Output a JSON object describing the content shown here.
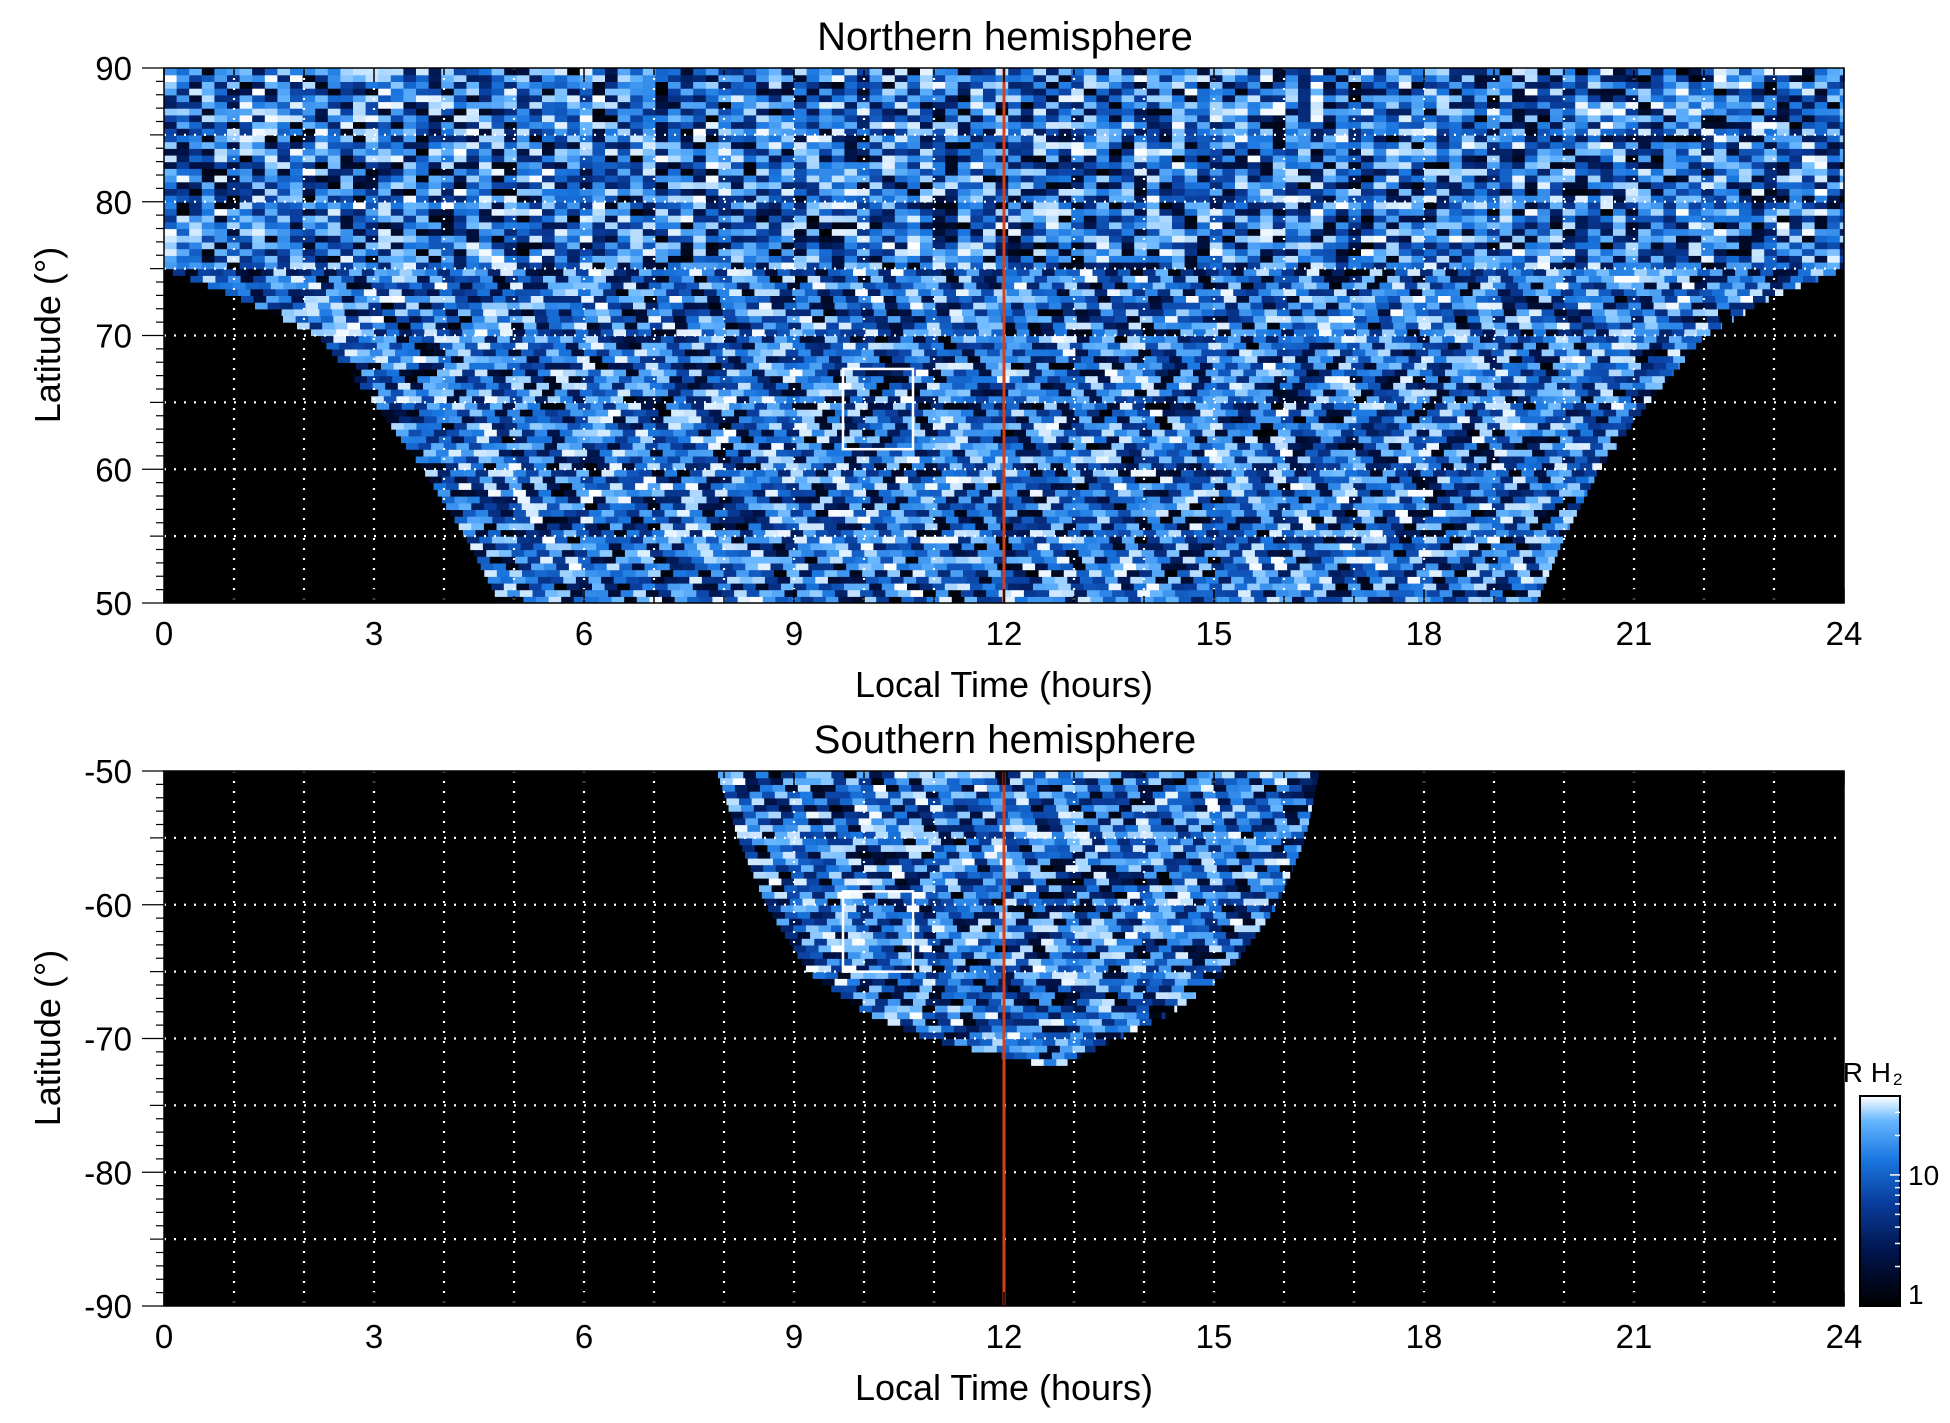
{
  "chart_data": [
    {
      "type": "heatmap",
      "title": "Northern hemisphere",
      "xlabel": "Local Time (hours)",
      "ylabel": "Latitude (°)",
      "xlim": [
        0,
        24
      ],
      "ylim": [
        50,
        90
      ],
      "xticks": [
        "0",
        "3",
        "6",
        "9",
        "12",
        "15",
        "18",
        "21",
        "24"
      ],
      "yticks": [
        "50",
        "60",
        "70",
        "80",
        "90"
      ],
      "grid": "dotted white, every 1 h in local time and every 5° in latitude",
      "background": "#000000",
      "coverage": {
        "description": "emission data fill a funnel-shaped region, widest near the pole",
        "lat_lt_extent": [
          [
            50,
            4.8,
            19.6
          ],
          [
            55,
            4.3,
            20.0
          ],
          [
            60,
            3.7,
            20.5
          ],
          [
            65,
            3.0,
            21.2
          ],
          [
            70,
            2.2,
            22.0
          ],
          [
            73,
            1.0,
            23.0
          ],
          [
            75,
            0,
            24
          ],
          [
            90,
            0,
            24
          ]
        ]
      },
      "noon_line": {
        "local_time": 12,
        "color": "#d2401c"
      },
      "box": {
        "lt_range": [
          9.7,
          10.7
        ],
        "lat_range": [
          61.5,
          67.5
        ],
        "color": "#ffffff"
      }
    },
    {
      "type": "heatmap",
      "title": "Southern hemisphere",
      "xlabel": "Local Time (hours)",
      "ylabel": "Latitude (°)",
      "xlim": [
        0,
        24
      ],
      "ylim": [
        -90,
        -50
      ],
      "xticks": [
        "0",
        "3",
        "6",
        "9",
        "12",
        "15",
        "18",
        "21",
        "24"
      ],
      "yticks": [
        "-90",
        "-80",
        "-70",
        "-60",
        "-50"
      ],
      "grid": "dotted white, every 1 h in local time and every 5° in latitude",
      "background": "#000000",
      "coverage": {
        "description": "emission data fill a bowl-shaped region around local noon",
        "lat_lt_extent": [
          [
            -50,
            7.9,
            16.5
          ],
          [
            -55,
            8.2,
            16.3
          ],
          [
            -60,
            8.6,
            15.9
          ],
          [
            -65,
            9.2,
            15.2
          ],
          [
            -68,
            10.0,
            14.4
          ],
          [
            -70,
            10.9,
            13.6
          ],
          [
            -72,
            12.6,
            12.8
          ]
        ]
      },
      "noon_line": {
        "local_time": 12,
        "color": "#d2401c"
      },
      "box": {
        "lt_range": [
          9.7,
          10.7
        ],
        "lat_range": [
          -65,
          -59
        ],
        "color": "#ffffff"
      }
    }
  ],
  "colorbar": {
    "unit_label": "kR H",
    "unit_subscript": "2",
    "scale": "log",
    "range": [
      1,
      40
    ],
    "tick_labels": [
      "10",
      "1"
    ],
    "tick_values": [
      10,
      1
    ],
    "colors": [
      "#000000",
      "#00134a",
      "#0a3fa0",
      "#1a77e0",
      "#66b6ff",
      "#ffffff"
    ]
  }
}
